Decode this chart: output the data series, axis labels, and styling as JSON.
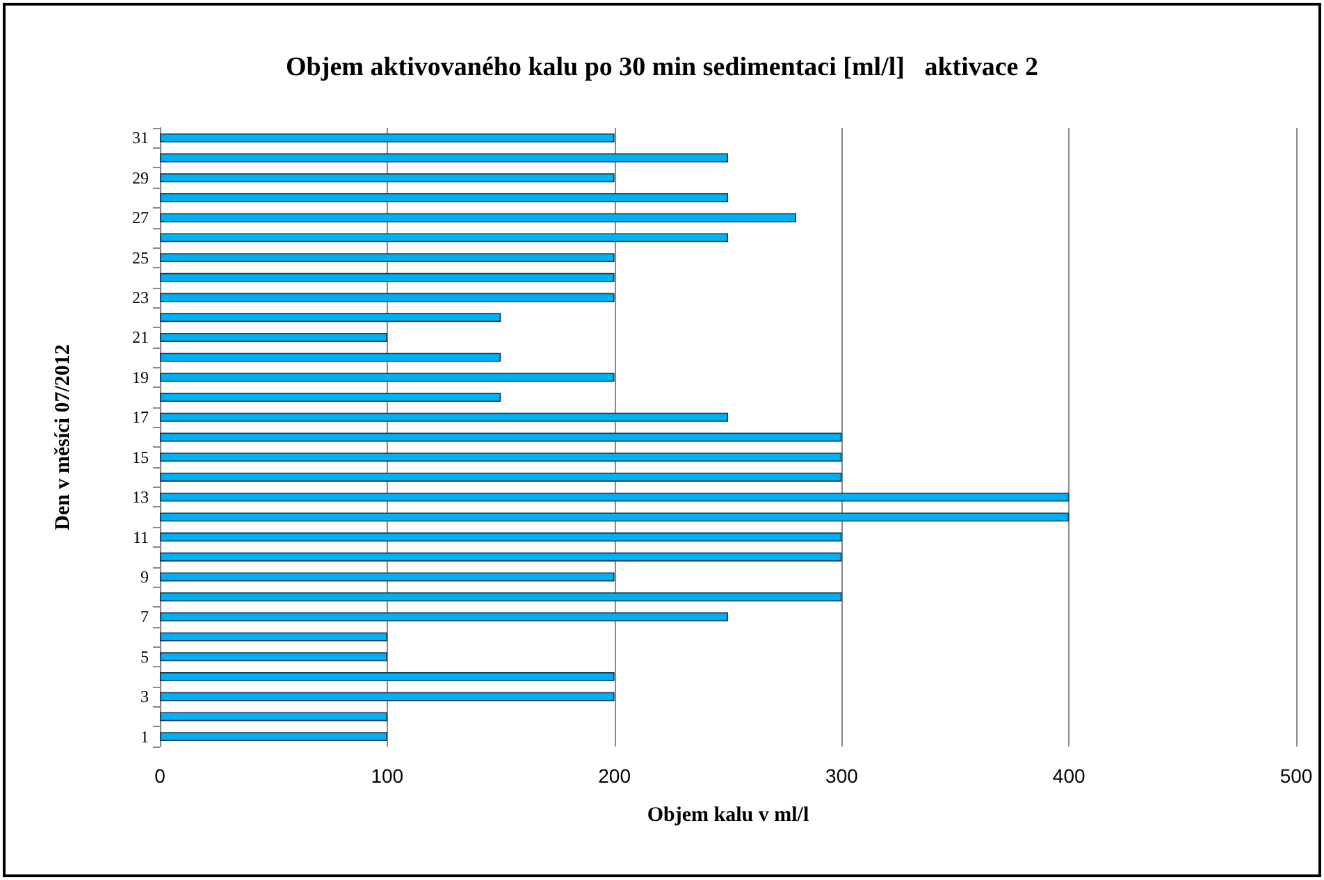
{
  "chart_data": {
    "type": "bar",
    "orientation": "horizontal",
    "title": "Objem aktivovaného kalu po 30 min sedimentaci [ml/l]   aktivace 2",
    "xlabel": "Objem kalu v ml/l",
    "ylabel": "Den v měsíci 07/2012",
    "categories": [
      "31",
      null,
      "29",
      null,
      "27",
      null,
      "25",
      null,
      "23",
      null,
      "21",
      null,
      "19",
      null,
      "17",
      null,
      "15",
      null,
      "13",
      null,
      "11",
      null,
      "9",
      null,
      "7",
      null,
      "5",
      null,
      "3",
      null,
      "1"
    ],
    "values": [
      200,
      250,
      200,
      250,
      280,
      250,
      200,
      200,
      200,
      150,
      100,
      150,
      200,
      150,
      250,
      300,
      300,
      300,
      400,
      400,
      300,
      300,
      200,
      300,
      250,
      100,
      100,
      200,
      200,
      100,
      100
    ],
    "color": "#00b0f0",
    "xlim": [
      0,
      500
    ],
    "xticks": [
      0,
      100,
      200,
      300,
      400,
      500
    ],
    "grid": "x"
  }
}
